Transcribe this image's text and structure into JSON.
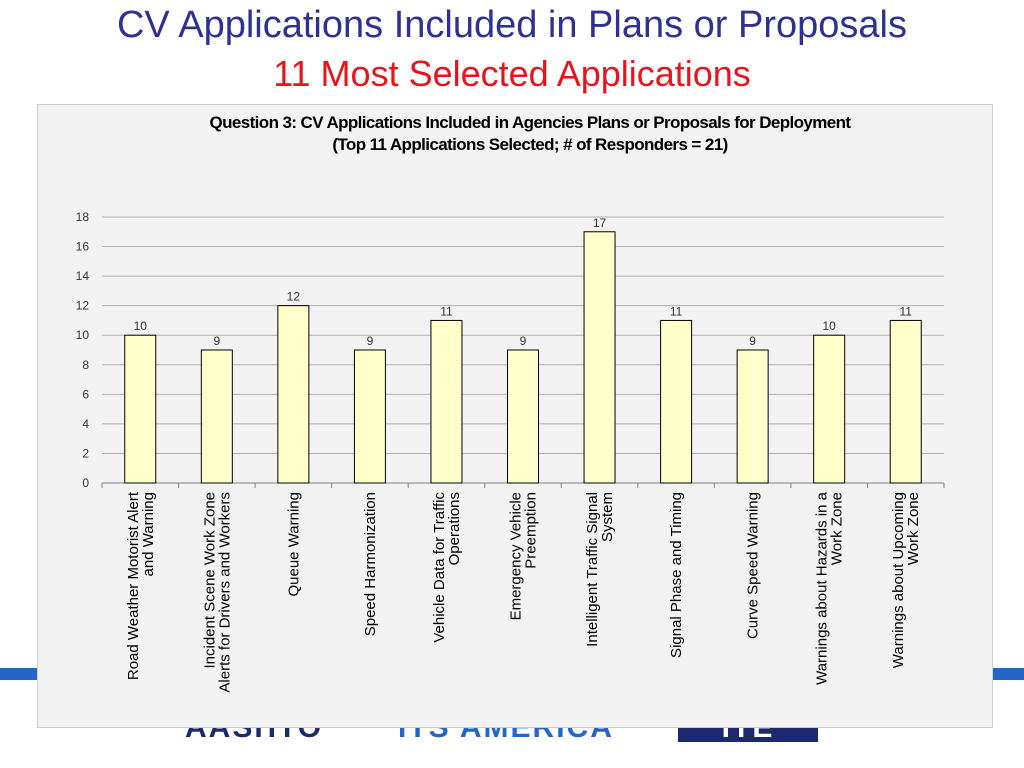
{
  "slide": {
    "title": "CV Applications Included in Plans or Proposals",
    "subtitle": "11 Most Selected Applications"
  },
  "colors": {
    "title": "#2e3192",
    "subtitle": "#e8141b",
    "bar_fill": "#ffffcc",
    "bar_stroke": "#000000",
    "band": "#2366c8"
  },
  "footer": {
    "logo_left": "AASHTO",
    "logo_mid": "ITS AMERICA",
    "logo_right": "ITE"
  },
  "chart_data": {
    "type": "bar",
    "title_line1": "Question 3: CV Applications Included in Agencies Plans or Proposals for Deployment",
    "title_line2": "(Top 11 Applications Selected;    # of Responders = 21)",
    "ylim": [
      0,
      18
    ],
    "yticks": [
      0,
      2,
      4,
      6,
      8,
      10,
      12,
      14,
      16,
      18
    ],
    "grid": true,
    "legend": "none",
    "categories": [
      [
        "Road Weather Motorist Alert",
        "and Warning"
      ],
      [
        "Incident Scene Work Zone",
        "Alerts for Drivers and Workers"
      ],
      [
        "Queue Warning"
      ],
      [
        "Speed Harmonization"
      ],
      [
        "Vehicle Data for Traffic",
        "Operations"
      ],
      [
        "Emergency Vehicle",
        "Preemption"
      ],
      [
        "Intelligent Traffic Signal",
        "System"
      ],
      [
        "Signal Phase and Timing"
      ],
      [
        "Curve Speed Warning"
      ],
      [
        "Warnings about Hazards in a",
        "Work Zone"
      ],
      [
        "Warnings about Upcoming",
        "Work Zone"
      ]
    ],
    "values": [
      10,
      9,
      12,
      9,
      11,
      9,
      17,
      11,
      9,
      10,
      11
    ]
  }
}
